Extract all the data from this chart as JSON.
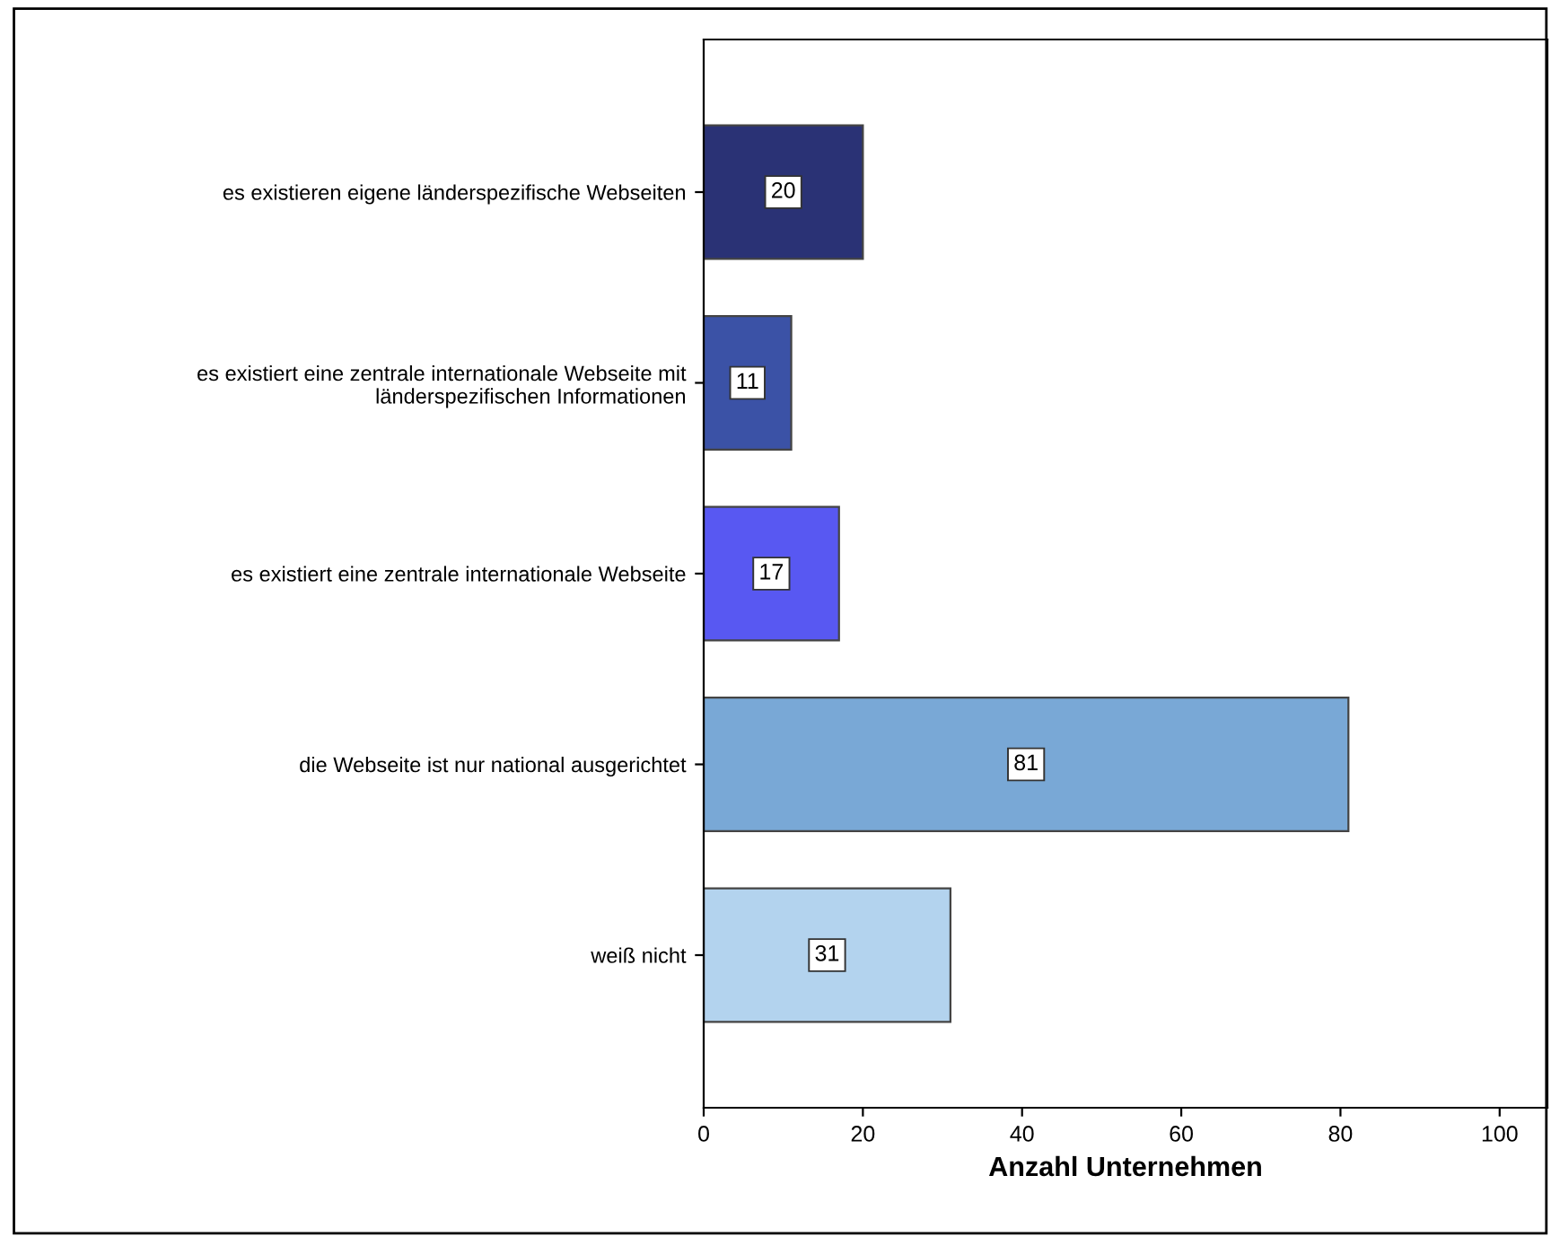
{
  "chart_data": {
    "type": "bar",
    "orientation": "horizontal",
    "xlabel": "Anzahl Unternehmen",
    "categories": [
      "es existieren eigene länderspezifische Webseiten",
      "es existiert eine zentrale internationale Webseite mit\nländerspezifischen Informationen",
      "es existiert eine zentrale internationale Webseite",
      "die Webseite ist nur national ausgerichtet",
      "weiß nicht"
    ],
    "values": [
      20,
      11,
      17,
      81,
      31
    ],
    "colors": [
      "#2a3275",
      "#3b52a6",
      "#5858f2",
      "#79a8d6",
      "#b3d3ee"
    ],
    "xlim": [
      0,
      106
    ],
    "xticks": [
      0,
      20,
      40,
      60,
      80,
      100
    ],
    "data_labels": true,
    "grid": false
  }
}
